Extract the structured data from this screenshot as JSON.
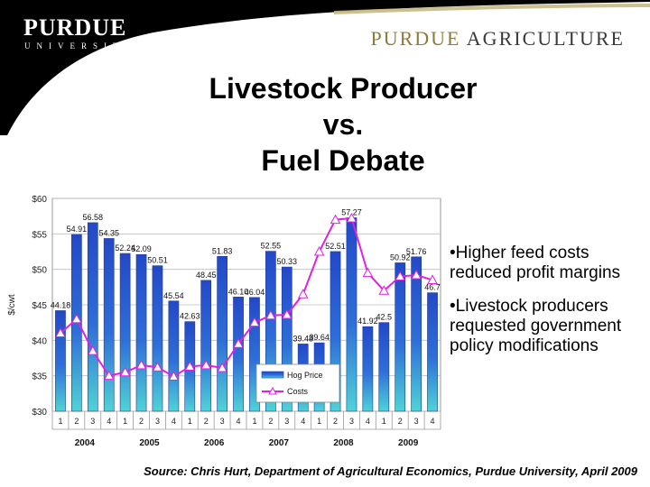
{
  "header": {
    "logo_main": "PURDUE",
    "logo_sub": "UNIVERSITY",
    "brand_word1": "PURDUE",
    "brand_word2": "AGRICULTURE"
  },
  "title_lines": [
    "Livestock Producer",
    "vs.",
    "Fuel Debate"
  ],
  "bullets": [
    "•Higher feed costs reduced profit  margins",
    "•Livestock producers requested  government policy modifications"
  ],
  "source": "Source: Chris Hurt, Department  of Agricultural Economics, Purdue University, April 2009",
  "colors": {
    "banner": "#000000",
    "accent": "#c7b982",
    "bar": "#2f5bd0",
    "costs": "#e020e0"
  },
  "chart_data": {
    "type": "bar",
    "ylabel": "$/cwt",
    "ylim": [
      30,
      60
    ],
    "ytick_labels": [
      "$30",
      "$35",
      "$40",
      "$45",
      "$50",
      "$55",
      "$60"
    ],
    "categories": [
      "1",
      "2",
      "3",
      "4",
      "1",
      "2",
      "3",
      "4",
      "1",
      "2",
      "3",
      "4",
      "1",
      "2",
      "3",
      "4",
      "1",
      "2",
      "3",
      "4",
      "1",
      "2",
      "3",
      "4"
    ],
    "years": [
      "2004",
      "2005",
      "2006",
      "2007",
      "2008",
      "2009"
    ],
    "series": [
      {
        "name": "Hog Price",
        "type": "bar",
        "values": [
          44.18,
          54.91,
          56.58,
          54.35,
          52.24,
          52.09,
          50.51,
          45.54,
          42.63,
          48.45,
          51.83,
          46.1,
          46.04,
          52.55,
          50.33,
          39.48,
          39.64,
          52.51,
          57.27,
          41.92,
          42.5,
          50.92,
          51.76,
          46.7
        ],
        "labels": [
          "44.18",
          "54.91",
          "56.58",
          "54.35",
          "52.24",
          "52.09",
          "50.51",
          "45.54",
          "42.63",
          "48.45",
          "51.83",
          "46.10",
          "46.04",
          "52.55",
          "50.33",
          "39.48",
          "39.64",
          "52.51",
          "57.27",
          "41.92",
          "42.5",
          "50.92",
          "51.76",
          "46.7"
        ]
      },
      {
        "name": "Costs",
        "type": "line",
        "values": [
          41,
          43,
          38.5,
          35,
          35.5,
          36.5,
          36.2,
          34.9,
          36.3,
          36.5,
          36.1,
          39.5,
          42.5,
          43.5,
          43.6,
          46.5,
          52.5,
          57,
          57.2,
          49.5,
          47,
          49,
          49.2,
          48.5
        ]
      }
    ],
    "legend_position": "bottom-right",
    "grid": true
  }
}
